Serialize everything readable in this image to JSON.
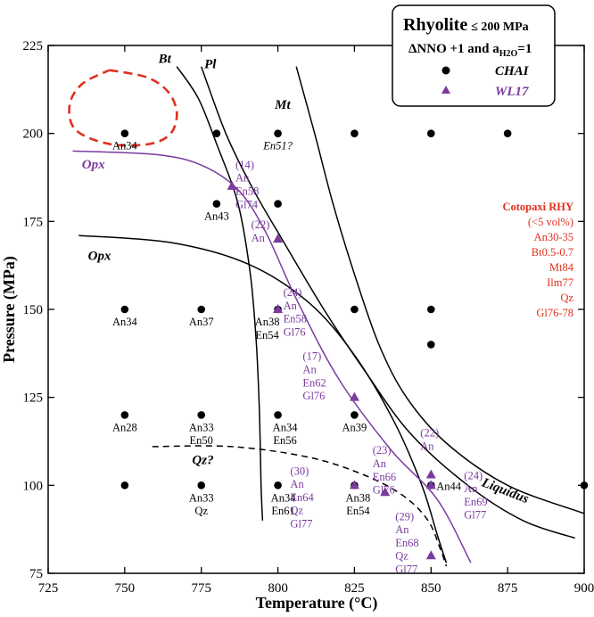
{
  "chart_data": {
    "type": "scatter",
    "xlabel": "Temperature (°C)",
    "ylabel": "Pressure (MPa)",
    "xlim": [
      725,
      900
    ],
    "ylim": [
      75,
      225
    ],
    "xticks": [
      725,
      750,
      775,
      800,
      825,
      850,
      875,
      900
    ],
    "yticks": [
      75,
      100,
      125,
      150,
      175,
      200,
      225
    ],
    "grid": false,
    "legend": {
      "placement": "top-right",
      "title": "Rhyolite",
      "title_suffix": "≤ 200 MPa",
      "subtitle_prefix": "ΔNNO +1 and a",
      "subtitle_sub": "H2O",
      "subtitle_suffix": "=1",
      "entries": [
        {
          "name": "CHAI",
          "marker": "circle",
          "color": "#000000"
        },
        {
          "name": "WL17",
          "marker": "triangle",
          "color": "#7b3b9e"
        }
      ]
    },
    "series": [
      {
        "name": "CHAI",
        "marker": "circle",
        "color": "#000000",
        "points": [
          {
            "x": 750,
            "y": 200,
            "label": [
              "An34"
            ]
          },
          {
            "x": 780,
            "y": 200,
            "label": []
          },
          {
            "x": 800,
            "y": 200,
            "label": [
              "En51?"
            ]
          },
          {
            "x": 825,
            "y": 200,
            "label": []
          },
          {
            "x": 850,
            "y": 200,
            "label": []
          },
          {
            "x": 875,
            "y": 200,
            "label": []
          },
          {
            "x": 780,
            "y": 180,
            "label": [
              "An43"
            ]
          },
          {
            "x": 800,
            "y": 180,
            "label": []
          },
          {
            "x": 750,
            "y": 150,
            "label": [
              "An34"
            ]
          },
          {
            "x": 775,
            "y": 150,
            "label": [
              "An37"
            ]
          },
          {
            "x": 800,
            "y": 150,
            "label": [
              "An38",
              "En54"
            ]
          },
          {
            "x": 825,
            "y": 150,
            "label": []
          },
          {
            "x": 850,
            "y": 150,
            "label": []
          },
          {
            "x": 850,
            "y": 140,
            "label": []
          },
          {
            "x": 750,
            "y": 120,
            "label": [
              "An28"
            ]
          },
          {
            "x": 775,
            "y": 120,
            "label": [
              "An33",
              "En50"
            ]
          },
          {
            "x": 800,
            "y": 120,
            "label": [
              "An34",
              "En56"
            ]
          },
          {
            "x": 825,
            "y": 120,
            "label": [
              "An39"
            ]
          },
          {
            "x": 750,
            "y": 100,
            "label": []
          },
          {
            "x": 775,
            "y": 100,
            "label": [
              "An33",
              "Qz"
            ]
          },
          {
            "x": 800,
            "y": 100,
            "label": [
              "An34",
              "En61"
            ]
          },
          {
            "x": 825,
            "y": 100,
            "label": [
              "An38",
              "En54"
            ]
          },
          {
            "x": 850,
            "y": 100,
            "label": [
              "An44"
            ]
          },
          {
            "x": 900,
            "y": 100,
            "label": []
          }
        ]
      },
      {
        "name": "WL17",
        "marker": "triangle",
        "color": "#7b3b9e",
        "points": [
          {
            "x": 785,
            "y": 185,
            "label": [
              "(14)",
              "An",
              "En58",
              "Gl74"
            ]
          },
          {
            "x": 800,
            "y": 170,
            "label": [
              "(22)",
              "An"
            ]
          },
          {
            "x": 800,
            "y": 150,
            "label": [
              "(24)",
              "An",
              "En58",
              "Gl76"
            ]
          },
          {
            "x": 825,
            "y": 125,
            "label": [
              "(17)",
              "An",
              "En62",
              "Gl76"
            ]
          },
          {
            "x": 850,
            "y": 103,
            "label": [
              "(22)",
              "An"
            ]
          },
          {
            "x": 835,
            "y": 98,
            "label": [
              "(23)",
              "An",
              "En66",
              "Gl76"
            ]
          },
          {
            "x": 825,
            "y": 100,
            "label": [
              "(30)",
              "An",
              "En64",
              "Qz",
              "Gl77"
            ]
          },
          {
            "x": 850,
            "y": 80,
            "label": [
              "(29)",
              "An",
              "En68",
              "Qz",
              "Gl77"
            ]
          },
          {
            "x": 850,
            "y": 100,
            "label": [
              "(24)",
              "An",
              "En69",
              "Gl77"
            ]
          }
        ]
      }
    ],
    "curves": [
      {
        "name": "Bt",
        "style": "solid",
        "color": "#000000",
        "points": [
          [
            767,
            219
          ],
          [
            774,
            210
          ],
          [
            780,
            197
          ],
          [
            787,
            180
          ],
          [
            791,
            160
          ],
          [
            793,
            140
          ],
          [
            794,
            120
          ],
          [
            794.5,
            100
          ],
          [
            795,
            90
          ]
        ]
      },
      {
        "name": "Pl",
        "style": "solid",
        "color": "#000000",
        "points": [
          [
            775,
            219
          ],
          [
            783,
            200
          ],
          [
            792,
            184
          ],
          [
            802,
            169
          ],
          [
            815,
            150
          ],
          [
            828,
            133
          ],
          [
            843,
            115
          ],
          [
            862,
            100
          ],
          [
            880,
            90
          ],
          [
            897,
            85
          ]
        ]
      },
      {
        "name": "Mt",
        "style": "solid",
        "color": "#000000",
        "points": [
          [
            806,
            219
          ],
          [
            812,
            200
          ],
          [
            818,
            180
          ],
          [
            825,
            160
          ],
          [
            833,
            140
          ],
          [
            842,
            125
          ],
          [
            855,
            112
          ],
          [
            875,
            100
          ],
          [
            900,
            92
          ]
        ]
      },
      {
        "name": "Opx",
        "style": "solid",
        "color": "#000000",
        "points": [
          [
            735,
            171
          ],
          [
            765,
            169
          ],
          [
            790,
            163
          ],
          [
            810,
            152
          ],
          [
            825,
            137
          ],
          [
            838,
            118
          ],
          [
            847,
            100
          ],
          [
            852,
            86
          ],
          [
            855,
            78
          ]
        ]
      },
      {
        "name": "Opx",
        "style": "solid",
        "color": "#7b3b9e",
        "points": [
          [
            733,
            195
          ],
          [
            760,
            194
          ],
          [
            775,
            191
          ],
          [
            787,
            184
          ],
          [
            796,
            172
          ],
          [
            806,
            153
          ],
          [
            820,
            130
          ],
          [
            837,
            110
          ],
          [
            852,
            96
          ],
          [
            863,
            78
          ]
        ]
      },
      {
        "name": "Qz?",
        "style": "dashed",
        "color": "#000000",
        "points": [
          [
            759,
            111
          ],
          [
            785,
            111
          ],
          [
            810,
            108
          ],
          [
            828,
            103
          ],
          [
            841,
            97
          ],
          [
            849,
            90
          ],
          [
            853,
            82
          ],
          [
            855,
            77
          ]
        ]
      },
      {
        "name": "",
        "style": "dashed-loop",
        "color": "#e0301e",
        "points": [
          [
            745,
            218
          ],
          [
            757,
            216
          ],
          [
            764,
            212
          ],
          [
            767,
            206
          ],
          [
            765,
            200
          ],
          [
            758,
            197
          ],
          [
            745,
            197
          ],
          [
            734,
            201
          ],
          [
            732,
            208
          ],
          [
            736,
            214
          ],
          [
            745,
            218
          ]
        ]
      }
    ],
    "curve_labels": [
      {
        "text": "Bt",
        "x": 761,
        "y": 220,
        "color": "#000000"
      },
      {
        "text": "Pl",
        "x": 776,
        "y": 218.5,
        "color": "#000000"
      },
      {
        "text": "Mt",
        "x": 799,
        "y": 207,
        "color": "#000000"
      },
      {
        "text": "Opx",
        "x": 738,
        "y": 164,
        "color": "#000000"
      },
      {
        "text": "Opx",
        "x": 736,
        "y": 190,
        "color": "#7b3b9e"
      },
      {
        "text": "Qz?",
        "x": 772,
        "y": 106,
        "color": "#000000"
      },
      {
        "text": "Liquidus",
        "x": 875,
        "y": 97,
        "color": "#000000"
      }
    ],
    "annotation": {
      "title": "Cotopaxi RHY",
      "lines": [
        "(<5 vol%)",
        "An30-35",
        "Bt0.5-0.7",
        "Mt84",
        "Ilm77",
        "Qz",
        "Gl76-78"
      ],
      "color": "#e0301e",
      "placement": "right"
    }
  }
}
